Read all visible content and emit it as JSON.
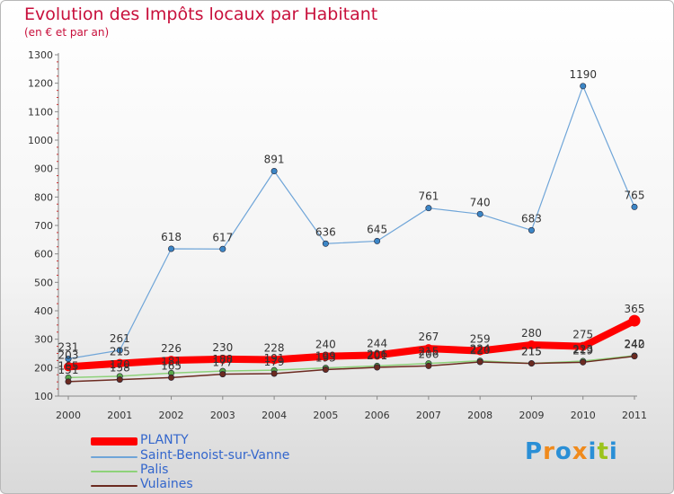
{
  "header": {
    "title": "Evolution des Impôts locaux par Habitant",
    "subtitle": "(en € et par an)"
  },
  "logo": {
    "text": "Proxiti",
    "letters": [
      "P",
      "r",
      "o",
      "x",
      "i",
      "t",
      "i"
    ],
    "colors": [
      "#2a8fd6",
      "#f08a1c",
      "#2a8fd6",
      "#f08a1c",
      "#2a8fd6",
      "#9bc31c",
      "#2a8fd6"
    ]
  },
  "chart_data": {
    "type": "line",
    "title": "Evolution des Impôts locaux par Habitant",
    "subtitle": "(en € et par an)",
    "xlabel": "",
    "ylabel": "",
    "categories": [
      "2000",
      "2001",
      "2002",
      "2003",
      "2004",
      "2005",
      "2006",
      "2007",
      "2008",
      "2009",
      "2010",
      "2011"
    ],
    "ylim": [
      100,
      1300
    ],
    "yticks": [
      100,
      200,
      300,
      400,
      500,
      600,
      700,
      800,
      900,
      1000,
      1100,
      1200,
      1300
    ],
    "grid": false,
    "legend_position": "bottom-left",
    "series": [
      {
        "name": "Saint-Benoist-sur-Vanne",
        "color": "#6fa5d8",
        "marker_color": "#3c86c6",
        "line_width": 1.2,
        "values": [
          231,
          261,
          618,
          617,
          891,
          636,
          645,
          761,
          740,
          683,
          1190,
          765
        ],
        "labels": [
          "231",
          "261",
          "618",
          "617",
          "891",
          "636",
          "645",
          "761",
          "740",
          "683",
          "1190",
          "765"
        ]
      },
      {
        "name": "Palis",
        "color": "#8ed27a",
        "marker_color": "#5aa84a",
        "line_width": 1.5,
        "values": [
          165,
          170,
          181,
          188,
          191,
          199,
          206,
          215,
          224,
          215,
          223,
          242
        ],
        "labels": [
          "165",
          "170",
          "181",
          "188",
          "191",
          "199",
          "206",
          "215",
          "224",
          "215",
          "223",
          "242"
        ]
      },
      {
        "name": "Vulaines",
        "color": "#6b2a20",
        "marker_color": "#6b2a20",
        "line_width": 1.5,
        "values": [
          151,
          158,
          165,
          177,
          179,
          193,
          201,
          206,
          220,
          215,
          219,
          240
        ],
        "labels": [
          "151",
          "158",
          "165",
          "177",
          "179",
          "193",
          "201",
          "206",
          "220",
          "215",
          "219",
          "240"
        ]
      },
      {
        "name": "PLANTY",
        "color": "#ff0000",
        "marker_color": "#ff0000",
        "line_width": 8,
        "values": [
          203,
          215,
          226,
          230,
          228,
          240,
          244,
          267,
          259,
          280,
          275,
          365
        ],
        "labels": [
          "203",
          "215",
          "226",
          "230",
          "228",
          "240",
          "244",
          "267",
          "259",
          "280",
          "275",
          "365"
        ]
      }
    ]
  }
}
